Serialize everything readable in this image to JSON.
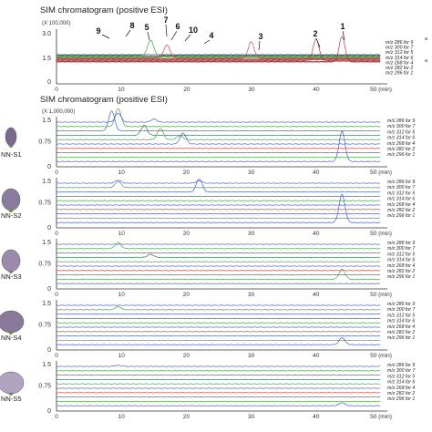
{
  "chart_data": [
    {
      "type": "line",
      "title": "SIM chromatogram (positive ESI)",
      "multiplier": "(X 100,000)",
      "yticks": [
        "0",
        "1.5",
        "3.0"
      ],
      "ylim": [
        0,
        3.4
      ],
      "xticks": [
        "0",
        "10",
        "20",
        "30",
        "40",
        "50 (min)"
      ],
      "xlim": [
        0,
        51
      ],
      "peak_labels": [
        "1",
        "2",
        "3",
        "4",
        "5",
        "6",
        "7",
        "8",
        "9",
        "10"
      ],
      "peaks": [
        {
          "label": "1",
          "trace": 10,
          "rt": 44.0,
          "h": 2.0
        },
        {
          "label": "2",
          "trace": 8,
          "rt": 40.0,
          "h": 1.7
        },
        {
          "label": "3",
          "trace": 5,
          "rt": 30.0,
          "h": 1.3
        },
        {
          "label": "5",
          "trace": 1,
          "rt": 14.5,
          "h": 1.2
        },
        {
          "label": "6",
          "trace": 4,
          "rt": 17.0,
          "h": 1.0
        }
      ],
      "series": [
        {
          "name": "m/z 286 for 9",
          "color": "#2a3fc9"
        },
        {
          "name": "m/z 300 for 7",
          "color": "#3a9a3a"
        },
        {
          "name": "m/z 312 for 5",
          "color": "#2a3fc9"
        },
        {
          "name": "m/z 314 for 6",
          "color": "#6a9a30"
        },
        {
          "name": "m/z 268 for 4",
          "color": "#d23a3a"
        },
        {
          "name": "m/z 282 for 2",
          "color": "#c44a7a"
        },
        {
          "name": "m/z 296 for 1",
          "color": "#a23a3a"
        }
      ]
    },
    {
      "type": "line",
      "title": "SIM chromatogram (positive ESI)",
      "multiplier": "(X 1,000,000)",
      "yticks": [
        "0",
        "0.75",
        "1.5"
      ],
      "ylim": [
        0,
        1.7
      ],
      "xticks": [
        "0",
        "10",
        "20",
        "30",
        "40",
        "50 (min)"
      ],
      "xlim": [
        0,
        51
      ],
      "panels": [
        {
          "sample": "NN-S1",
          "peaks": [
            {
              "trace": 0,
              "rt": 9.5,
              "h": 0.45
            },
            {
              "trace": 0,
              "rt": 15.0,
              "h": 0.15
            },
            {
              "trace": 1,
              "rt": 9.5,
              "h": 0.9
            },
            {
              "trace": 2,
              "rt": 8.5,
              "h": 1.0
            },
            {
              "trace": 3,
              "rt": 13.5,
              "h": 0.5
            },
            {
              "trace": 4,
              "rt": 16.0,
              "h": 0.55
            },
            {
              "trace": 4,
              "rt": 19.0,
              "h": 0.2
            },
            {
              "trace": 5,
              "rt": 19.5,
              "h": 0.55
            },
            {
              "trace": 9,
              "rt": 44.0,
              "h": 1.5
            }
          ]
        },
        {
          "sample": "NN-S2",
          "peaks": [
            {
              "trace": 0,
              "rt": 9.5,
              "h": 0.15
            },
            {
              "trace": 0,
              "rt": 22.0,
              "h": 0.12
            },
            {
              "trace": 1,
              "rt": 9.5,
              "h": 0.3
            },
            {
              "trace": 2,
              "rt": 22.0,
              "h": 0.65
            },
            {
              "trace": 9,
              "rt": 44.0,
              "h": 1.4
            }
          ]
        },
        {
          "sample": "NN-S3",
          "peaks": [
            {
              "trace": 1,
              "rt": 9.5,
              "h": 0.3
            },
            {
              "trace": 3,
              "rt": 14.5,
              "h": 0.15
            },
            {
              "trace": 8,
              "rt": 44.0,
              "h": 0.5
            }
          ]
        },
        {
          "sample": "NN-S4",
          "peaks": [
            {
              "trace": 1,
              "rt": 9.5,
              "h": 0.15
            },
            {
              "trace": 9,
              "rt": 44.0,
              "h": 0.35
            }
          ]
        },
        {
          "sample": "NN-S5",
          "peaks": [
            {
              "trace": 0,
              "rt": 9.5,
              "h": 0.05
            },
            {
              "trace": 9,
              "rt": 44.0,
              "h": 0.15
            }
          ]
        }
      ],
      "series": [
        {
          "name": "m/z 286 for 9",
          "color": "#3a4fd0"
        },
        {
          "name": "m/z 300 for 7",
          "color": "#3a9a3a"
        },
        {
          "name": "m/z 312 for 5",
          "color": "#3a4fd0"
        },
        {
          "name": "m/z 314 for 6",
          "color": "#2a6a4a"
        },
        {
          "name": "m/z 268 for 4",
          "color": "#3a9a3a"
        },
        {
          "name": "m/z 282 for 2",
          "color": "#3a4fd0"
        },
        {
          "name": "m/z 296 for 1",
          "color": "#c43a3a"
        }
      ]
    }
  ]
}
